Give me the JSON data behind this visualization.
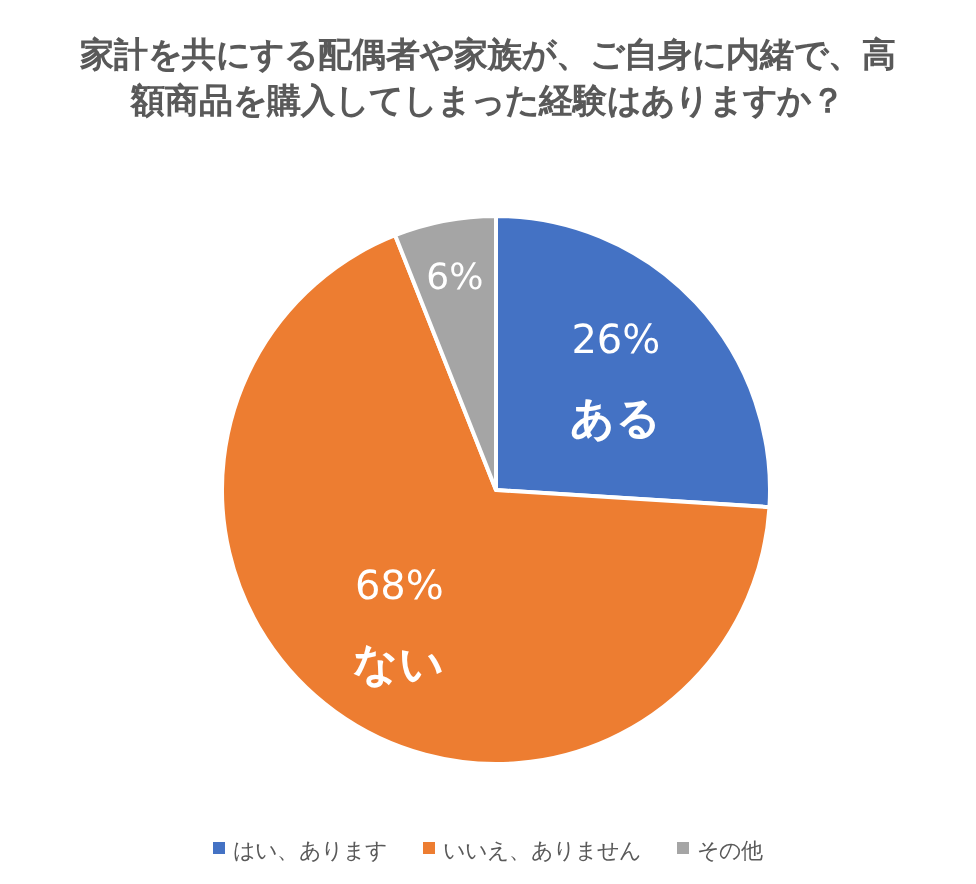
{
  "chart_data": {
    "type": "pie",
    "title": "家計を共にする配偶者や家族が、ご自身に内緒で、高額商品を購入してしまった経験はありますか？",
    "categories": [
      "はい、あります",
      "いいえ、ありません",
      "その他"
    ],
    "values": [
      26,
      68,
      6
    ],
    "colors": [
      "#4472c4",
      "#ed7d31",
      "#a5a5a5"
    ],
    "value_labels": [
      "26%",
      "68%",
      "6%"
    ],
    "annotations": [
      {
        "text": "ある",
        "x": "はい、あります"
      },
      {
        "text": "ない",
        "x": "いいえ、ありません"
      }
    ],
    "legend": "bottom"
  }
}
